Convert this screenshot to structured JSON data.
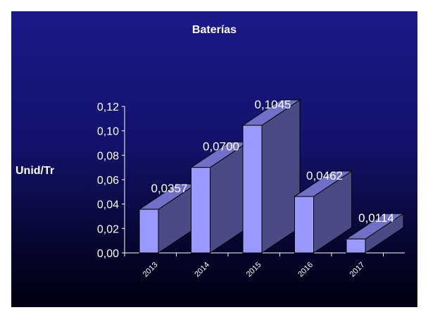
{
  "chart_data": {
    "type": "bar",
    "title": "Baterías",
    "xlabel": "",
    "ylabel": "Unid/Tr",
    "categories": [
      "2013",
      "2014",
      "2015",
      "2016",
      "2017"
    ],
    "values": [
      0.0357,
      0.07,
      0.1045,
      0.0462,
      0.0114
    ],
    "data_labels": [
      "0,0357",
      "0,0700",
      "0,1045",
      "0,0462",
      "0,0114"
    ],
    "ylim": [
      0,
      0.12
    ],
    "yticks": [
      0.0,
      0.02,
      0.04,
      0.06,
      0.08,
      0.1,
      0.12
    ],
    "ytick_labels": [
      "0,00",
      "0,02",
      "0,04",
      "0,06",
      "0,08",
      "0,10",
      "0,12"
    ],
    "grid": false,
    "legend": "none",
    "style": "3d",
    "colors": {
      "bar_front": "#9999ff",
      "bar_side": "#4a4a85",
      "bar_top": "#7070c8",
      "axis": "#ffffff",
      "text": "#ffffff"
    }
  }
}
